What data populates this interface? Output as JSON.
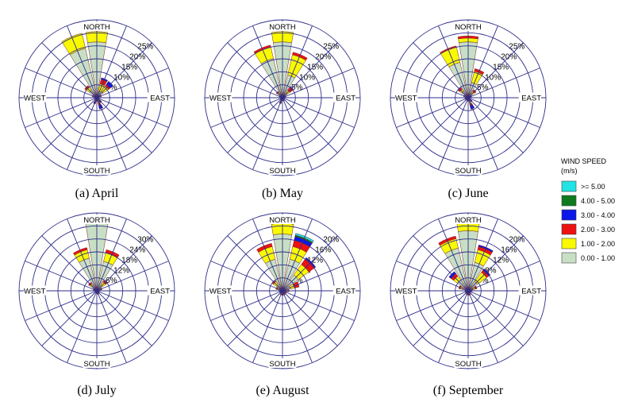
{
  "chart_data": [
    {
      "type": "wind-rose",
      "caption": "(a) April",
      "direction_labels": [
        "NORTH",
        "EAST",
        "SOUTH",
        "WEST"
      ],
      "ring_max": 30,
      "ring_labels": [
        "5%",
        "10%",
        "15%",
        "20%",
        "25%"
      ],
      "petals": [
        {
          "dir": "N",
          "values": [
            21.5,
            4,
            0,
            0,
            0,
            0
          ]
        },
        {
          "dir": "NNW",
          "values": [
            19.5,
            6,
            0,
            0,
            0,
            0
          ]
        },
        {
          "dir": "NNE",
          "values": [
            2.5,
            3,
            1.8,
            0.6,
            0,
            0
          ]
        },
        {
          "dir": "NE",
          "values": [
            3,
            2.5,
            0.8,
            1.5,
            0,
            0
          ]
        },
        {
          "dir": "ENE",
          "values": [
            1,
            0.5,
            0.3,
            0,
            0,
            0
          ]
        },
        {
          "dir": "E",
          "values": [
            0.5,
            0.3,
            0.2,
            0,
            0,
            0
          ]
        },
        {
          "dir": "ESE",
          "values": [
            0.4,
            0.2,
            0.2,
            0,
            0,
            0
          ]
        },
        {
          "dir": "SE",
          "values": [
            1,
            0.3,
            0.4,
            0.6,
            0,
            0
          ]
        },
        {
          "dir": "SSE",
          "values": [
            1.8,
            0.4,
            0.8,
            1.5,
            0,
            0
          ]
        },
        {
          "dir": "S",
          "values": [
            1,
            0.3,
            0.2,
            0,
            0,
            0
          ]
        },
        {
          "dir": "SSW",
          "values": [
            0.8,
            0.4,
            0.5,
            0.8,
            0,
            0
          ]
        },
        {
          "dir": "SW",
          "values": [
            0.5,
            0.2,
            0.2,
            0,
            0,
            0
          ]
        },
        {
          "dir": "WSW",
          "values": [
            0.5,
            0.2,
            0.1,
            0,
            0,
            0
          ]
        },
        {
          "dir": "W",
          "values": [
            0.5,
            0.2,
            0.1,
            0,
            0,
            0
          ]
        },
        {
          "dir": "WNW",
          "values": [
            1,
            0.5,
            0.3,
            0,
            0,
            0
          ]
        },
        {
          "dir": "NW",
          "values": [
            3.5,
            1.5,
            0.8,
            0,
            0,
            0
          ]
        }
      ]
    },
    {
      "type": "wind-rose",
      "caption": "(b) May",
      "direction_labels": [
        "NORTH",
        "EAST",
        "SOUTH",
        "WEST"
      ],
      "ring_max": 30,
      "ring_labels": [
        "5%",
        "10%",
        "15%",
        "20%",
        "25%"
      ],
      "petals": [
        {
          "dir": "N",
          "values": [
            21.5,
            4,
            0,
            0,
            0,
            0
          ]
        },
        {
          "dir": "NNW",
          "values": [
            15.5,
            4.5,
            0.8,
            0,
            0,
            0
          ]
        },
        {
          "dir": "NNE",
          "values": [
            9,
            8,
            1,
            0,
            0,
            0
          ]
        },
        {
          "dir": "NE",
          "values": [
            2,
            1.5,
            1.5,
            0.3,
            0,
            0
          ]
        },
        {
          "dir": "ENE",
          "values": [
            0.8,
            0.3,
            0.3,
            0,
            0,
            0
          ]
        },
        {
          "dir": "E",
          "values": [
            0.4,
            0.2,
            0.1,
            0,
            0,
            0
          ]
        },
        {
          "dir": "ESE",
          "values": [
            0.4,
            0.2,
            0.2,
            0,
            0,
            0
          ]
        },
        {
          "dir": "SE",
          "values": [
            0.5,
            0.2,
            0.2,
            0,
            0,
            0
          ]
        },
        {
          "dir": "SSE",
          "values": [
            0.5,
            0.2,
            0.3,
            0.3,
            0,
            0
          ]
        },
        {
          "dir": "S",
          "values": [
            0.5,
            0.2,
            0.2,
            0,
            0,
            0
          ]
        },
        {
          "dir": "SSW",
          "values": [
            0.8,
            0.3,
            0.5,
            0.5,
            0.3,
            0
          ]
        },
        {
          "dir": "SW",
          "values": [
            0.5,
            0.2,
            0.2,
            0.3,
            0,
            0
          ]
        },
        {
          "dir": "WSW",
          "values": [
            0.4,
            0.2,
            0.1,
            0,
            0,
            0
          ]
        },
        {
          "dir": "W",
          "values": [
            0.4,
            0.2,
            0.1,
            0,
            0,
            0
          ]
        },
        {
          "dir": "WNW",
          "values": [
            0.8,
            0.3,
            0.2,
            0,
            0,
            0
          ]
        },
        {
          "dir": "NW",
          "values": [
            1.5,
            1,
            0.5,
            0,
            0,
            0
          ]
        }
      ]
    },
    {
      "type": "wind-rose",
      "caption": "(c) June",
      "direction_labels": [
        "NORTH",
        "EAST",
        "SOUTH",
        "WEST"
      ],
      "ring_max": 30,
      "ring_labels": [
        "5%",
        "10%",
        "15%",
        "20%",
        "25%"
      ],
      "petals": [
        {
          "dir": "N",
          "values": [
            21.5,
            1.5,
            0.8,
            0,
            0,
            0
          ]
        },
        {
          "dir": "NNW",
          "values": [
            14,
            6,
            0.5,
            0,
            0,
            0
          ]
        },
        {
          "dir": "NNE",
          "values": [
            6,
            4.5,
            1,
            0,
            0,
            0
          ]
        },
        {
          "dir": "NE",
          "values": [
            1.5,
            1.5,
            0.8,
            0,
            0,
            0
          ]
        },
        {
          "dir": "ENE",
          "values": [
            0.8,
            0.4,
            0.2,
            0,
            0,
            0
          ]
        },
        {
          "dir": "E",
          "values": [
            0.5,
            0.2,
            0.1,
            0,
            0,
            0
          ]
        },
        {
          "dir": "ESE",
          "values": [
            0.4,
            0.2,
            0.2,
            0,
            0,
            0
          ]
        },
        {
          "dir": "SE",
          "values": [
            0.8,
            0.3,
            0.3,
            0.5,
            0,
            0
          ]
        },
        {
          "dir": "SSE",
          "values": [
            2,
            0.5,
            0.6,
            1.5,
            0,
            0
          ]
        },
        {
          "dir": "S",
          "values": [
            0.8,
            0.3,
            0.3,
            0,
            0,
            0
          ]
        },
        {
          "dir": "SSW",
          "values": [
            0.6,
            0.3,
            0.3,
            0,
            0,
            0
          ]
        },
        {
          "dir": "SW",
          "values": [
            0.5,
            0.2,
            0.2,
            0,
            0,
            0
          ]
        },
        {
          "dir": "WSW",
          "values": [
            0.5,
            0.2,
            0.2,
            0.4,
            0,
            0
          ]
        },
        {
          "dir": "W",
          "values": [
            0.5,
            0.2,
            0.1,
            0,
            0,
            0
          ]
        },
        {
          "dir": "WNW",
          "values": [
            1,
            0.5,
            0.3,
            0,
            0,
            0
          ]
        },
        {
          "dir": "NW",
          "values": [
            3,
            1,
            0.8,
            0,
            0,
            0
          ]
        }
      ]
    },
    {
      "type": "wind-rose",
      "caption": "(d) July",
      "direction_labels": [
        "NORTH",
        "EAST",
        "SOUTH",
        "WEST"
      ],
      "ring_max": 36,
      "ring_labels": [
        "6%",
        "12%",
        "18%",
        "24%",
        "30%"
      ],
      "petals": [
        {
          "dir": "N",
          "values": [
            31.5,
            3,
            0,
            0,
            0,
            0
          ]
        },
        {
          "dir": "NNW",
          "values": [
            15.5,
            4,
            1,
            0,
            0,
            0
          ]
        },
        {
          "dir": "NNE",
          "values": [
            14,
            4,
            1.5,
            0,
            0,
            0
          ]
        },
        {
          "dir": "NE",
          "values": [
            3,
            2,
            1,
            0,
            0,
            0
          ]
        },
        {
          "dir": "ENE",
          "values": [
            1.5,
            0.5,
            0.5,
            0,
            0,
            0
          ]
        },
        {
          "dir": "E",
          "values": [
            0.8,
            0.3,
            0.3,
            0,
            0,
            0
          ]
        },
        {
          "dir": "ESE",
          "values": [
            0.6,
            0.2,
            0.2,
            0,
            0,
            0
          ]
        },
        {
          "dir": "SE",
          "values": [
            0.8,
            0.3,
            0.3,
            0,
            0,
            0
          ]
        },
        {
          "dir": "SSE",
          "values": [
            1,
            0.3,
            0.5,
            0,
            0,
            0
          ]
        },
        {
          "dir": "S",
          "values": [
            0.8,
            0.3,
            0.3,
            0,
            0,
            0
          ]
        },
        {
          "dir": "SSW",
          "values": [
            0.6,
            0.2,
            0.2,
            0,
            0,
            0
          ]
        },
        {
          "dir": "SW",
          "values": [
            0.5,
            0.2,
            0.2,
            0,
            0,
            0
          ]
        },
        {
          "dir": "WSW",
          "values": [
            0.5,
            0.2,
            0.1,
            0,
            0,
            0
          ]
        },
        {
          "dir": "W",
          "values": [
            0.5,
            0.2,
            0.1,
            0,
            0,
            0
          ]
        },
        {
          "dir": "WNW",
          "values": [
            1,
            0.5,
            0.3,
            0,
            0,
            0
          ]
        },
        {
          "dir": "NW",
          "values": [
            3,
            1,
            0.8,
            0,
            0,
            0
          ]
        }
      ]
    },
    {
      "type": "wind-rose",
      "caption": "(e) August",
      "direction_labels": [
        "NORTH",
        "EAST",
        "SOUTH",
        "WEST"
      ],
      "ring_max": 24,
      "ring_labels": [
        "4%",
        "8%",
        "12%",
        "16%",
        "20%"
      ],
      "petals": [
        {
          "dir": "N",
          "values": [
            17.5,
            3.3,
            1.3,
            1.1,
            0,
            0
          ]
        },
        {
          "dir": "NNW",
          "values": [
            10,
            4,
            1,
            0,
            0,
            0
          ]
        },
        {
          "dir": "NNE",
          "values": [
            10,
            4,
            2,
            1.2,
            0.4,
            0.6
          ]
        },
        {
          "dir": "NE",
          "values": [
            6,
            4,
            2.2,
            0.4,
            0,
            0
          ]
        },
        {
          "dir": "ENE",
          "values": [
            2.5,
            1.3,
            1.5,
            0,
            0,
            0
          ]
        },
        {
          "dir": "E",
          "values": [
            1.2,
            0.5,
            0.3,
            0,
            0,
            0
          ]
        },
        {
          "dir": "ESE",
          "values": [
            0.8,
            0.3,
            0.2,
            0,
            0,
            0
          ]
        },
        {
          "dir": "SE",
          "values": [
            0.8,
            0.3,
            0.2,
            0,
            0,
            0
          ]
        },
        {
          "dir": "SSE",
          "values": [
            0.8,
            0.3,
            0.3,
            0,
            0,
            0
          ]
        },
        {
          "dir": "S",
          "values": [
            0.8,
            0.3,
            0.3,
            0,
            0,
            0
          ]
        },
        {
          "dir": "SSW",
          "values": [
            0.7,
            0.3,
            0.3,
            0,
            0,
            0
          ]
        },
        {
          "dir": "SW",
          "values": [
            0.6,
            0.2,
            0.2,
            0,
            0,
            0
          ]
        },
        {
          "dir": "WSW",
          "values": [
            0.6,
            0.2,
            0.2,
            0,
            0,
            0
          ]
        },
        {
          "dir": "W",
          "values": [
            0.6,
            0.2,
            0.2,
            0,
            0,
            0
          ]
        },
        {
          "dir": "WNW",
          "values": [
            1,
            0.8,
            0.3,
            0,
            0,
            0
          ]
        },
        {
          "dir": "NW",
          "values": [
            2,
            1.5,
            0.5,
            0,
            0,
            0
          ]
        }
      ]
    },
    {
      "type": "wind-rose",
      "caption": "(f) September",
      "direction_labels": [
        "NORTH",
        "EAST",
        "SOUTH",
        "WEST"
      ],
      "ring_max": 24,
      "ring_labels": [
        "4%",
        "8%",
        "12%",
        "16%",
        "20%"
      ],
      "petals": [
        {
          "dir": "N",
          "values": [
            18.5,
            3,
            0.5,
            0,
            0,
            0
          ]
        },
        {
          "dir": "NNW",
          "values": [
            13.5,
            3,
            0.8,
            0,
            0,
            0
          ]
        },
        {
          "dir": "NNE",
          "values": [
            9,
            4,
            1,
            0.5,
            0,
            0
          ]
        },
        {
          "dir": "NE",
          "values": [
            3.5,
            3.5,
            0.8,
            0.6,
            0,
            0
          ]
        },
        {
          "dir": "ENE",
          "values": [
            1.5,
            0.8,
            0.5,
            0,
            0,
            0
          ]
        },
        {
          "dir": "E",
          "values": [
            0.8,
            0.3,
            0.2,
            0,
            0,
            0
          ]
        },
        {
          "dir": "ESE",
          "values": [
            0.5,
            0.2,
            0.2,
            0,
            0,
            0
          ]
        },
        {
          "dir": "SE",
          "values": [
            0.6,
            0.2,
            0.2,
            0,
            0,
            0
          ]
        },
        {
          "dir": "SSE",
          "values": [
            0.8,
            0.3,
            0.3,
            0,
            0,
            0
          ]
        },
        {
          "dir": "S",
          "values": [
            0.8,
            0.3,
            0.3,
            0,
            0,
            0
          ]
        },
        {
          "dir": "SSW",
          "values": [
            0.6,
            0.3,
            0.3,
            0,
            0,
            0
          ]
        },
        {
          "dir": "SW",
          "values": [
            0.6,
            0.2,
            0.2,
            0,
            0,
            0
          ]
        },
        {
          "dir": "WSW",
          "values": [
            0.5,
            0.2,
            0.2,
            0,
            0,
            0
          ]
        },
        {
          "dir": "W",
          "values": [
            0.5,
            0.2,
            0.2,
            0,
            0,
            0
          ]
        },
        {
          "dir": "WNW",
          "values": [
            2,
            0.5,
            0.5,
            0,
            0,
            0
          ]
        },
        {
          "dir": "NW",
          "values": [
            4,
            1.5,
            1,
            0.8,
            0,
            0
          ]
        }
      ]
    }
  ],
  "legend": {
    "title_line1": "WIND SPEED",
    "title_line2": "(m/s)",
    "bins": [
      {
        "label": ">= 5.00",
        "color": "#22e3e3"
      },
      {
        "label": "4.00 - 5.00",
        "color": "#0e7a1d"
      },
      {
        "label": "3.00 - 4.00",
        "color": "#0a18e8"
      },
      {
        "label": "2.00 - 3.00",
        "color": "#ee1111"
      },
      {
        "label": "1.00 - 2.00",
        "color": "#f9f900"
      },
      {
        "label": "0.00 - 1.00",
        "color": "#c9dfc5"
      }
    ]
  },
  "colors": {
    "grid": "#2e2e8a",
    "bins_inner_to_outer": [
      "#c9dfc5",
      "#f9f900",
      "#ee1111",
      "#0a18e8",
      "#0e7a1d",
      "#22e3e3"
    ]
  }
}
